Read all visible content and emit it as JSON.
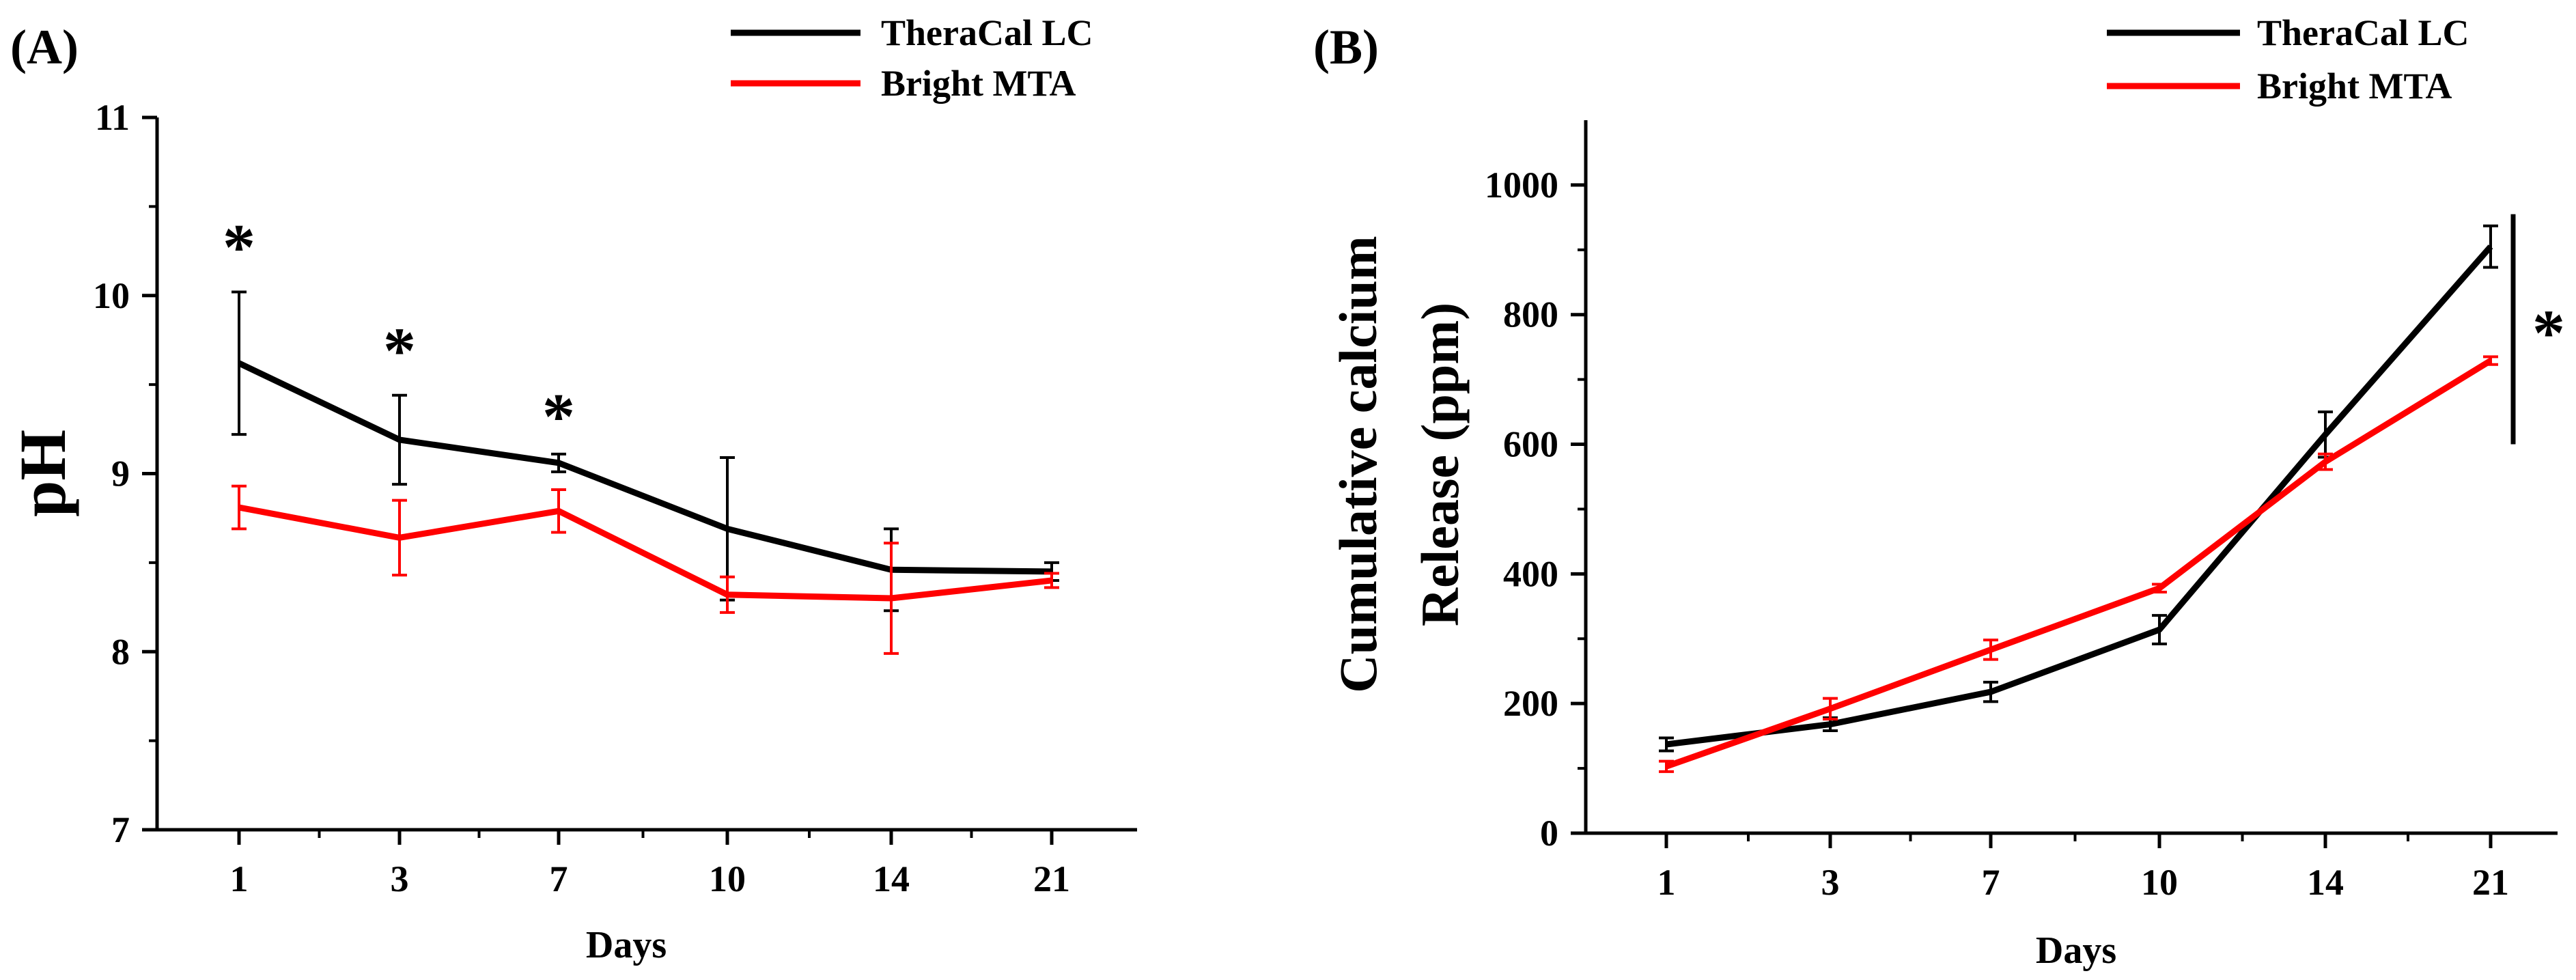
{
  "colors": {
    "theracal": "#000000",
    "bright": "#ff0000"
  },
  "chart_data": [
    {
      "panel_label": "(A)",
      "type": "line",
      "categories": [
        "1",
        "3",
        "7",
        "10",
        "14",
        "21"
      ],
      "xlabel": "Days",
      "ylabel": "pH",
      "ylim": [
        7,
        11
      ],
      "yticks": [
        7,
        8,
        9,
        10,
        11
      ],
      "ytick_labels": [
        "7",
        "8",
        "9",
        "10",
        "11"
      ],
      "series": [
        {
          "name": "TheraCal LC",
          "color": "#000000",
          "values": [
            9.62,
            9.19,
            9.06,
            8.69,
            8.46,
            8.45
          ],
          "errors": [
            0.4,
            0.25,
            0.05,
            0.4,
            0.23,
            0.05
          ]
        },
        {
          "name": "Bright MTA",
          "color": "#ff0000",
          "values": [
            8.81,
            8.64,
            8.79,
            8.32,
            8.3,
            8.4
          ],
          "errors": [
            0.12,
            0.21,
            0.12,
            0.1,
            0.31,
            0.04
          ]
        }
      ],
      "significance": [
        {
          "category": "1",
          "value": 10.28,
          "label": "*"
        },
        {
          "category": "3",
          "value": 9.7,
          "label": "*"
        },
        {
          "category": "7",
          "value": 9.33,
          "label": "*"
        }
      ],
      "legend": "top-right"
    },
    {
      "panel_label": "(B)",
      "type": "line",
      "categories": [
        "1",
        "3",
        "7",
        "10",
        "14",
        "21"
      ],
      "xlabel": "Days",
      "ylabel_line1": "Cumulative calcium",
      "ylabel_line2": "Release (ppm)",
      "ylim": [
        0,
        1100
      ],
      "yticks": [
        0,
        200,
        400,
        600,
        800,
        1000
      ],
      "ytick_labels": [
        "0",
        "200",
        "400",
        "600",
        "800",
        "1000"
      ],
      "series": [
        {
          "name": "TheraCal LC",
          "color": "#000000",
          "values": [
            137,
            168,
            218,
            314,
            615,
            905
          ],
          "errors": [
            10,
            10,
            15,
            22,
            35,
            32
          ]
        },
        {
          "name": "Bright MTA",
          "color": "#ff0000",
          "values": [
            103,
            192,
            283,
            378,
            573,
            729
          ],
          "errors": [
            8,
            16,
            15,
            6,
            12,
            6
          ]
        }
      ],
      "significance_bracket": {
        "from": 600,
        "to": 955,
        "label": "*"
      },
      "legend": "top-right"
    }
  ]
}
